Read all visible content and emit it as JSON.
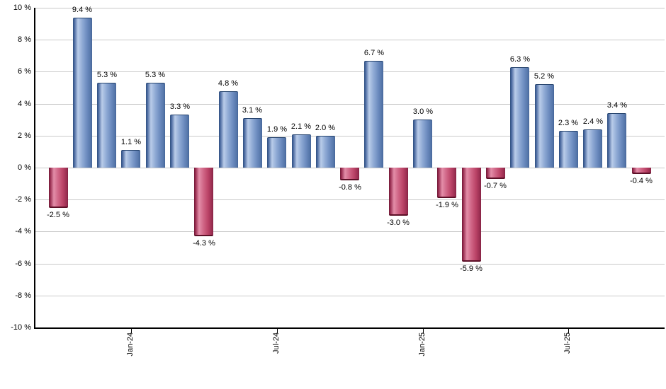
{
  "chart_data": {
    "type": "bar",
    "title": "",
    "xlabel": "",
    "ylabel": "",
    "ylim": [
      -10,
      10
    ],
    "grid": true,
    "legend": "none",
    "values": [
      -2.5,
      9.4,
      5.3,
      1.1,
      5.3,
      3.3,
      -4.3,
      4.8,
      3.1,
      1.9,
      2.1,
      2.0,
      -0.8,
      6.7,
      -3.0,
      3.0,
      -1.9,
      -5.9,
      -0.7,
      6.3,
      5.2,
      2.3,
      2.4,
      3.4,
      -0.4
    ],
    "bar_labels": [
      "-2.5 %",
      "9.4 %",
      "5.3 %",
      "1.1 %",
      "5.3 %",
      "3.3 %",
      "-4.3 %",
      "4.8 %",
      "3.1 %",
      "1.9 %",
      "2.1 %",
      "2.0 %",
      "-0.8 %",
      "6.7 %",
      "-3.0 %",
      "3.0 %",
      "-1.9 %",
      "-5.9 %",
      "-0.7 %",
      "6.3 %",
      "5.2 %",
      "2.3 %",
      "2.4 %",
      "3.4 %",
      "-0.4 %"
    ],
    "x_ticks": [
      {
        "bar_index": 3,
        "label": "Jan-24"
      },
      {
        "bar_index": 9,
        "label": "Jul-24"
      },
      {
        "bar_index": 15,
        "label": "Jan-25"
      },
      {
        "bar_index": 21,
        "label": "Jul-25"
      }
    ],
    "y_ticks": [
      {
        "value": 10,
        "label": "10 %"
      },
      {
        "value": 8,
        "label": "8 %"
      },
      {
        "value": 6,
        "label": "6 %"
      },
      {
        "value": 4,
        "label": "4 %"
      },
      {
        "value": 2,
        "label": "2 %"
      },
      {
        "value": 0,
        "label": "0 %"
      },
      {
        "value": -2,
        "label": "-2 %"
      },
      {
        "value": -4,
        "label": "-4 %"
      },
      {
        "value": -6,
        "label": "-6 %"
      },
      {
        "value": -8,
        "label": "-8 %"
      },
      {
        "value": -10,
        "label": "-10 %"
      }
    ],
    "colors": {
      "positive_bar": "#8ea9d4",
      "positive_bar_dark": "#30507f",
      "positive_bar_highlight": "#b9cce9",
      "negative_bar": "#cf6485",
      "negative_bar_dark": "#6e1b37",
      "negative_bar_highlight": "#e38da8",
      "gridline": "#c9c9c9",
      "axis": "#000000",
      "background": "#ffffff"
    }
  }
}
